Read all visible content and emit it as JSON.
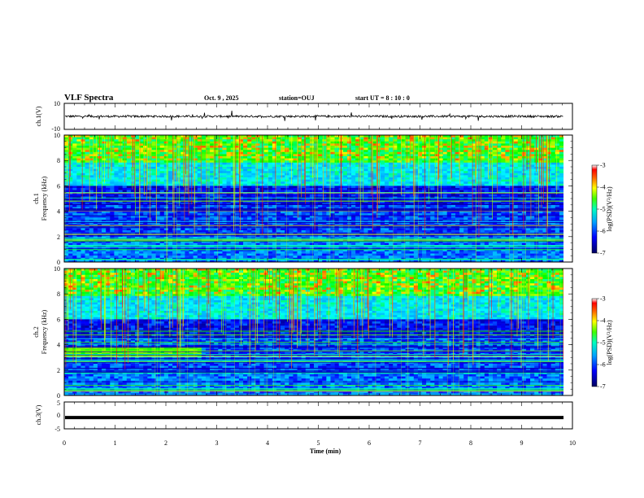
{
  "header": {
    "title": "VLF Spectra",
    "date": "Oct. 9 , 2025",
    "station": "station=OUJ",
    "start": "start UT = 8 : 10 : 0"
  },
  "colors": {
    "spectrogram_stops": [
      "#000080",
      "#0000ff",
      "#00a0ff",
      "#00ffff",
      "#00ff00",
      "#ffff00",
      "#ff8000",
      "#ff0000",
      "#ffffff"
    ]
  },
  "chart_data": [
    {
      "type": "line",
      "panel": "ch1-waveform",
      "ylabel": "ch.1(V)",
      "ylim": [
        -10,
        10
      ],
      "yticks": [
        "10",
        "-10"
      ],
      "series": [
        {
          "values_description_level": 0
        }
      ]
    },
    {
      "type": "heatmap",
      "panel": "ch1-spectrogram",
      "ylabel": "ch.1",
      "ylabel2": "Frequency (kHz)",
      "ylim": [
        0,
        10
      ],
      "yticks": [
        "0",
        "2",
        "4",
        "6",
        "8",
        "10"
      ],
      "colorbar": {
        "label": "log(PSD)(V²/Hz)",
        "range": [
          -7,
          -3
        ],
        "ticks": [
          "-3",
          "-4",
          "-5",
          "-6",
          "-7"
        ]
      }
    },
    {
      "type": "heatmap",
      "panel": "ch2-spectrogram",
      "ylabel": "ch.2",
      "ylabel2": "Frequency (kHz)",
      "ylim": [
        0,
        10
      ],
      "yticks": [
        "0",
        "2",
        "4",
        "6",
        "8",
        "10"
      ],
      "colorbar": {
        "label": "log(PSD)(V²/Hz)",
        "range": [
          -7,
          -3
        ],
        "ticks": [
          "-3",
          "-4",
          "-5",
          "-6",
          "-7"
        ]
      }
    },
    {
      "type": "line",
      "panel": "ch3-waveform",
      "ylabel": "ch.3(V)",
      "ylim": [
        -5,
        5
      ],
      "yticks": [
        "5",
        "0",
        "-5"
      ],
      "series": [
        {
          "values": [
            -0.8,
            -0.8
          ]
        }
      ]
    }
  ],
  "xaxis": {
    "label": "Time (min)",
    "xlim": [
      0,
      10
    ],
    "ticks": [
      "0",
      "1",
      "2",
      "3",
      "4",
      "5",
      "6",
      "7",
      "8",
      "9",
      "10"
    ]
  }
}
